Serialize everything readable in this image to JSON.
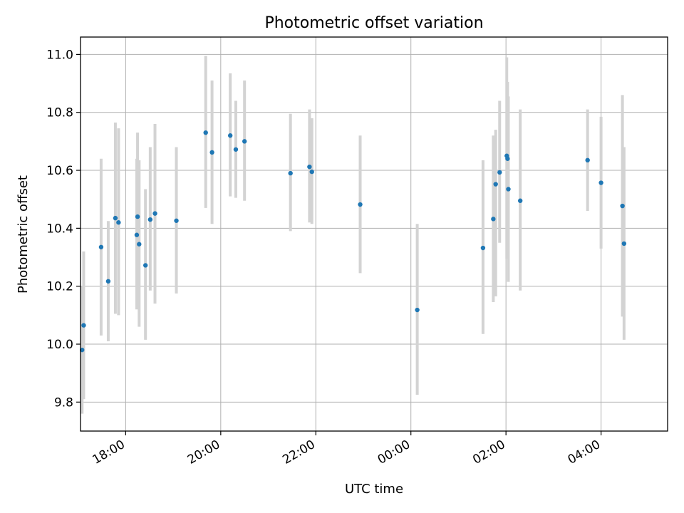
{
  "chart_data": {
    "type": "scatter",
    "title": "Photometric offset variation",
    "xlabel": "UTC time",
    "ylabel": "Photometric offset",
    "x_unit": "UTC time (hours, continuing past midnight)",
    "xlim": [
      "17:03",
      "05:24"
    ],
    "ylim": [
      9.7,
      11.06
    ],
    "x_ticks": [
      "18:00",
      "20:00",
      "22:00",
      "00:00",
      "02:00",
      "04:00"
    ],
    "y_ticks": [
      "9.8",
      "10.0",
      "10.2",
      "10.4",
      "10.6",
      "10.8",
      "11.0"
    ],
    "grid": true,
    "error_bars": true,
    "colors": {
      "point": "#1f77b4",
      "errorbar": "#d3d3d3",
      "grid": "#b0b0b0"
    },
    "points": [
      {
        "x": "17:05",
        "y": 9.98,
        "err_low": 9.76,
        "err_high": 10.2
      },
      {
        "x": "17:07",
        "y": 10.065,
        "err_low": 9.81,
        "err_high": 10.32
      },
      {
        "x": "17:29",
        "y": 10.335,
        "err_low": 10.03,
        "err_high": 10.64
      },
      {
        "x": "17:38",
        "y": 10.217,
        "err_low": 10.01,
        "err_high": 10.425
      },
      {
        "x": "17:47",
        "y": 10.435,
        "err_low": 10.105,
        "err_high": 10.765
      },
      {
        "x": "17:51",
        "y": 10.42,
        "err_low": 10.1,
        "err_high": 10.745
      },
      {
        "x": "18:14",
        "y": 10.377,
        "err_low": 10.12,
        "err_high": 10.64
      },
      {
        "x": "18:15",
        "y": 10.44,
        "err_low": 10.15,
        "err_high": 10.73
      },
      {
        "x": "18:17",
        "y": 10.345,
        "err_low": 10.06,
        "err_high": 10.635
      },
      {
        "x": "18:25",
        "y": 10.272,
        "err_low": 10.015,
        "err_high": 10.535
      },
      {
        "x": "18:31",
        "y": 10.43,
        "err_low": 10.185,
        "err_high": 10.68
      },
      {
        "x": "18:37",
        "y": 10.451,
        "err_low": 10.14,
        "err_high": 10.76
      },
      {
        "x": "19:04",
        "y": 10.426,
        "err_low": 10.175,
        "err_high": 10.68
      },
      {
        "x": "19:41",
        "y": 10.73,
        "err_low": 10.47,
        "err_high": 10.995
      },
      {
        "x": "19:49",
        "y": 10.662,
        "err_low": 10.415,
        "err_high": 10.91
      },
      {
        "x": "20:12",
        "y": 10.72,
        "err_low": 10.51,
        "err_high": 10.935
      },
      {
        "x": "20:19",
        "y": 10.672,
        "err_low": 10.505,
        "err_high": 10.84
      },
      {
        "x": "20:30",
        "y": 10.7,
        "err_low": 10.495,
        "err_high": 10.91
      },
      {
        "x": "21:28",
        "y": 10.59,
        "err_low": 10.39,
        "err_high": 10.795
      },
      {
        "x": "21:52",
        "y": 10.612,
        "err_low": 10.42,
        "err_high": 10.81
      },
      {
        "x": "21:55",
        "y": 10.595,
        "err_low": 10.415,
        "err_high": 10.78
      },
      {
        "x": "22:56",
        "y": 10.482,
        "err_low": 10.245,
        "err_high": 10.72
      },
      {
        "x": "00:08",
        "y": 10.118,
        "err_low": 9.825,
        "err_high": 10.415
      },
      {
        "x": "01:31",
        "y": 10.332,
        "err_low": 10.035,
        "err_high": 10.635
      },
      {
        "x": "01:44",
        "y": 10.432,
        "err_low": 10.145,
        "err_high": 10.72
      },
      {
        "x": "01:47",
        "y": 10.552,
        "err_low": 10.165,
        "err_high": 10.74
      },
      {
        "x": "01:52",
        "y": 10.593,
        "err_low": 10.35,
        "err_high": 10.84
      },
      {
        "x": "02:01",
        "y": 10.65,
        "err_low": 10.295,
        "err_high": 10.99
      },
      {
        "x": "02:02",
        "y": 10.64,
        "err_low": 10.39,
        "err_high": 10.905
      },
      {
        "x": "02:03",
        "y": 10.535,
        "err_low": 10.215,
        "err_high": 10.855
      },
      {
        "x": "02:18",
        "y": 10.495,
        "err_low": 10.185,
        "err_high": 10.81
      },
      {
        "x": "03:43",
        "y": 10.635,
        "err_low": 10.46,
        "err_high": 10.81
      },
      {
        "x": "04:00",
        "y": 10.557,
        "err_low": 10.33,
        "err_high": 10.785
      },
      {
        "x": "04:27",
        "y": 10.477,
        "err_low": 10.095,
        "err_high": 10.86
      },
      {
        "x": "04:29",
        "y": 10.347,
        "err_low": 10.015,
        "err_high": 10.68
      }
    ]
  }
}
